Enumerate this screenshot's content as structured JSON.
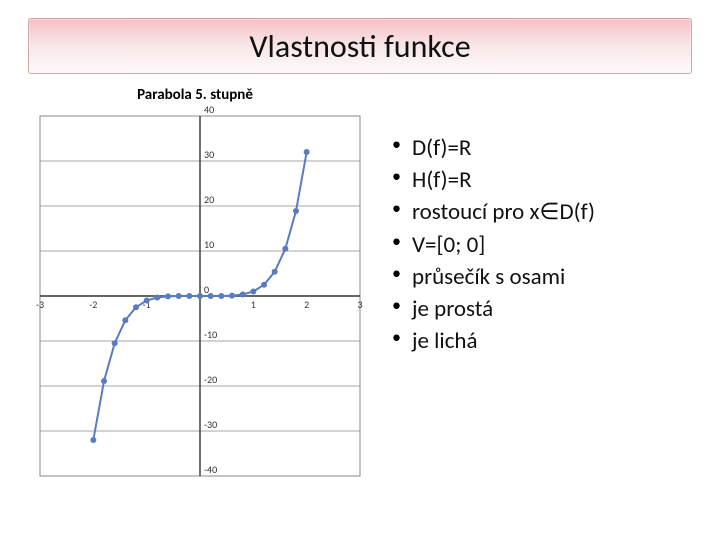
{
  "title": "Vlastnosti funkce",
  "title_fontsize": 32,
  "chart": {
    "title": "Parabola 5. stupně",
    "title_fontsize": 15,
    "type": "line",
    "x": [
      -2.0,
      -1.8,
      -1.6,
      -1.4,
      -1.2,
      -1.0,
      -0.8,
      -0.6,
      -0.4,
      -0.2,
      0.0,
      0.2,
      0.4,
      0.6,
      0.8,
      1.0,
      1.2,
      1.4,
      1.6,
      1.8,
      2.0
    ],
    "y": [
      -32.0,
      -18.9,
      -10.49,
      -5.38,
      -2.49,
      -1.0,
      -0.33,
      -0.08,
      -0.01,
      0.0,
      0.0,
      0.0,
      0.01,
      0.08,
      0.33,
      1.0,
      2.49,
      5.38,
      10.49,
      18.9,
      32.0
    ],
    "line_color": "#5a7bbf",
    "marker_color": "#5a7bbf",
    "marker_size": 3,
    "line_width": 2,
    "xlim": [
      -3,
      3
    ],
    "ylim": [
      -40,
      40
    ],
    "xtick_step": 1,
    "ytick_step": 10,
    "grid_color": "#8a8a8a",
    "axis_color": "#333333",
    "tick_font_size": 10,
    "background_color": "#ffffff"
  },
  "properties": {
    "items": [
      "D(f)=R",
      "H(f)=R",
      "rostoucí pro x∈D(f)",
      "V=[0; 0]",
      "průsečík  s osami",
      "je prostá",
      "je lichá"
    ],
    "fontsize": 23
  }
}
